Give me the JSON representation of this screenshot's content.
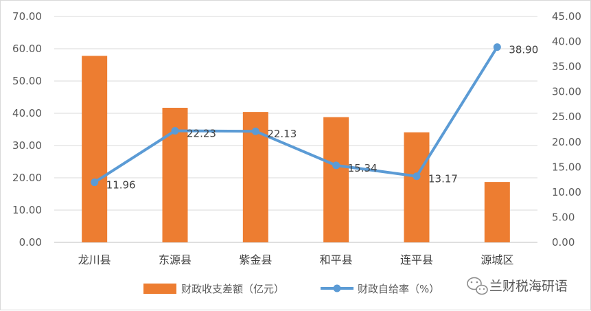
{
  "chart_data": {
    "type": "bar+line",
    "categories": [
      "龙川县",
      "东源县",
      "紫金县",
      "和平县",
      "连平县",
      "源城区"
    ],
    "series": [
      {
        "name": "财政收支差额（亿元）",
        "type": "bar",
        "axis": "left",
        "values": [
          57.8,
          41.7,
          40.4,
          38.8,
          34.1,
          18.7
        ],
        "color": "#ed7d31"
      },
      {
        "name": "财政自给率（%）",
        "type": "line",
        "axis": "right",
        "values": [
          11.96,
          22.23,
          22.13,
          15.34,
          13.17,
          38.9
        ],
        "labels": [
          "11.96",
          "22.23",
          "22.13",
          "15.34",
          "13.17",
          "38.90"
        ],
        "color": "#5b9bd5"
      }
    ],
    "y_left": {
      "ylim": [
        0,
        70
      ],
      "ticks": [
        "0.00",
        "10.00",
        "20.00",
        "30.00",
        "40.00",
        "50.00",
        "60.00",
        "70.00"
      ]
    },
    "y_right": {
      "ylim": [
        0,
        45
      ],
      "ticks": [
        "0.00",
        "5.00",
        "10.00",
        "15.00",
        "20.00",
        "25.00",
        "30.00",
        "35.00",
        "40.00",
        "45.00"
      ]
    },
    "grid": true,
    "legend_position": "bottom"
  },
  "watermark": {
    "text": "兰财税海研语",
    "icon": "wechat-icon"
  }
}
